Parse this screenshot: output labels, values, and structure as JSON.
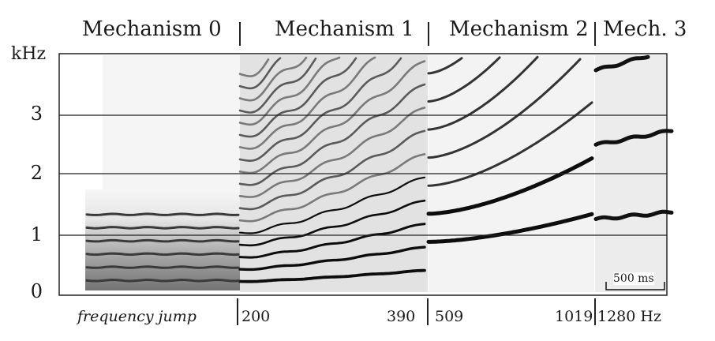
{
  "mechanisms": [
    {
      "label": "Mechanism 0"
    },
    {
      "label": "Mechanism 1"
    },
    {
      "label": "Mechanism 2"
    },
    {
      "label": "Mech. 3"
    }
  ],
  "y_axis": {
    "unit": "kHz",
    "ticks": [
      "3",
      "2",
      "1",
      "0"
    ]
  },
  "bottom_labels": {
    "frequency_jump": "frequency jump",
    "f_200": "200",
    "f_390": "390",
    "f_509": "509",
    "f_1019": "1019",
    "f_1280": "1280 Hz"
  },
  "scale_bar": {
    "label": "500 ms"
  },
  "colors": {
    "ink": "#1a1a1a",
    "background": "#ffffff"
  }
}
